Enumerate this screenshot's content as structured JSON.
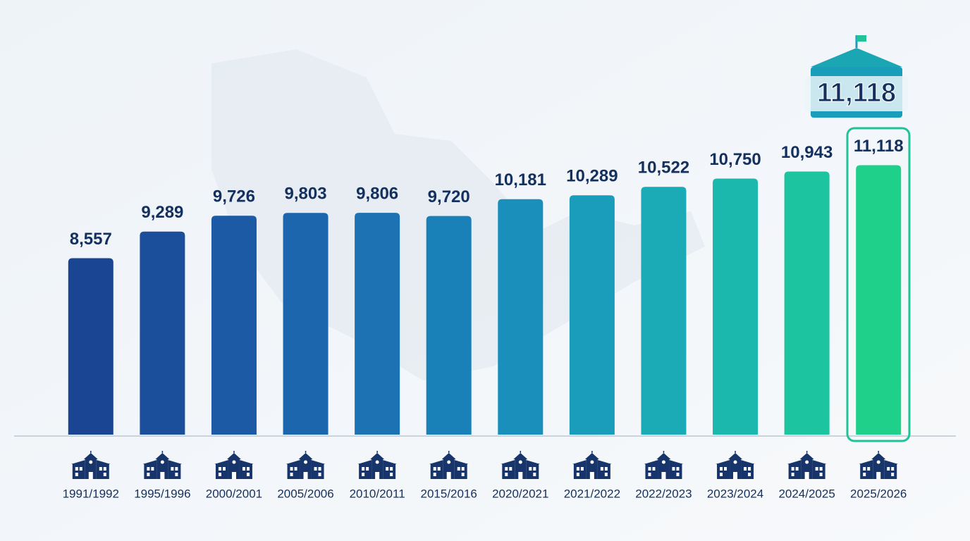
{
  "chart_data": {
    "type": "bar",
    "categories": [
      "1991/1992",
      "1995/1996",
      "2000/2001",
      "2005/2006",
      "2010/2011",
      "2015/2016",
      "2020/2021",
      "2021/2022",
      "2022/2023",
      "2023/2024",
      "2024/2025",
      "2025/2026"
    ],
    "values": [
      8557,
      9289,
      9726,
      9803,
      9806,
      9720,
      10181,
      10289,
      10522,
      10750,
      10943,
      11118
    ],
    "value_labels": [
      "8,557",
      "9,289",
      "9,726",
      "9,803",
      "9,806",
      "9,720",
      "10,181",
      "10,289",
      "10,522",
      "10,750",
      "10,943",
      "11,118"
    ],
    "colors": [
      "#1a4593",
      "#1b4f9c",
      "#1c5aa5",
      "#1c66ad",
      "#1c72b3",
      "#1a80b8",
      "#1a8fbb",
      "#1a9dbb",
      "#1aabb6",
      "#1bb8ad",
      "#1cc4a0",
      "#1fd08a"
    ],
    "ylim": [
      3700,
      12000
    ]
  }
}
